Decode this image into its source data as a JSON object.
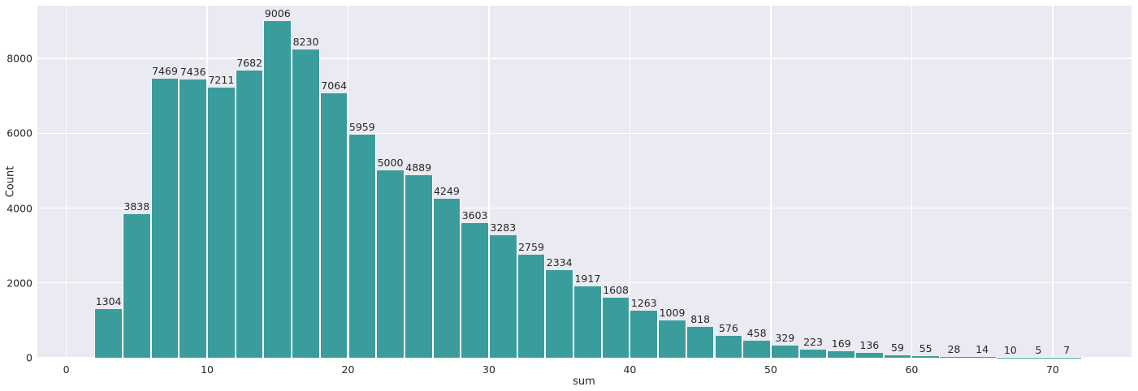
{
  "figure": {
    "background": "#ffffff"
  },
  "chart_data": {
    "type": "bar",
    "variant": "histogram",
    "title": "",
    "xlabel": "sum",
    "ylabel": "Count",
    "legend_position": "none",
    "grid": true,
    "plot_background": "#eaeaf2",
    "grid_color": "#ffffff",
    "bar_color": "#3a9d9b",
    "bar_edge_color": "#ffffff",
    "tick_color": "#262626",
    "bin_width": 2,
    "bin_starts": [
      2,
      4,
      6,
      8,
      10,
      12,
      14,
      16,
      18,
      20,
      22,
      24,
      26,
      28,
      30,
      32,
      34,
      36,
      38,
      40,
      42,
      44,
      46,
      48,
      50,
      52,
      54,
      56,
      58,
      60,
      62,
      64,
      66,
      68,
      70
    ],
    "counts": [
      1304,
      3838,
      7469,
      7436,
      7211,
      7682,
      9006,
      8230,
      7064,
      5959,
      5000,
      4889,
      4249,
      3603,
      3283,
      2759,
      2334,
      1917,
      1608,
      1263,
      1009,
      818,
      576,
      458,
      329,
      223,
      169,
      136,
      59,
      55,
      28,
      14,
      10,
      5,
      7
    ],
    "x_ticks": [
      0,
      10,
      20,
      30,
      40,
      50,
      60,
      70
    ],
    "y_ticks": [
      0,
      2000,
      4000,
      6000,
      8000
    ],
    "xlim": [
      -2.05,
      75.6
    ],
    "ylim": [
      0,
      9410
    ]
  }
}
